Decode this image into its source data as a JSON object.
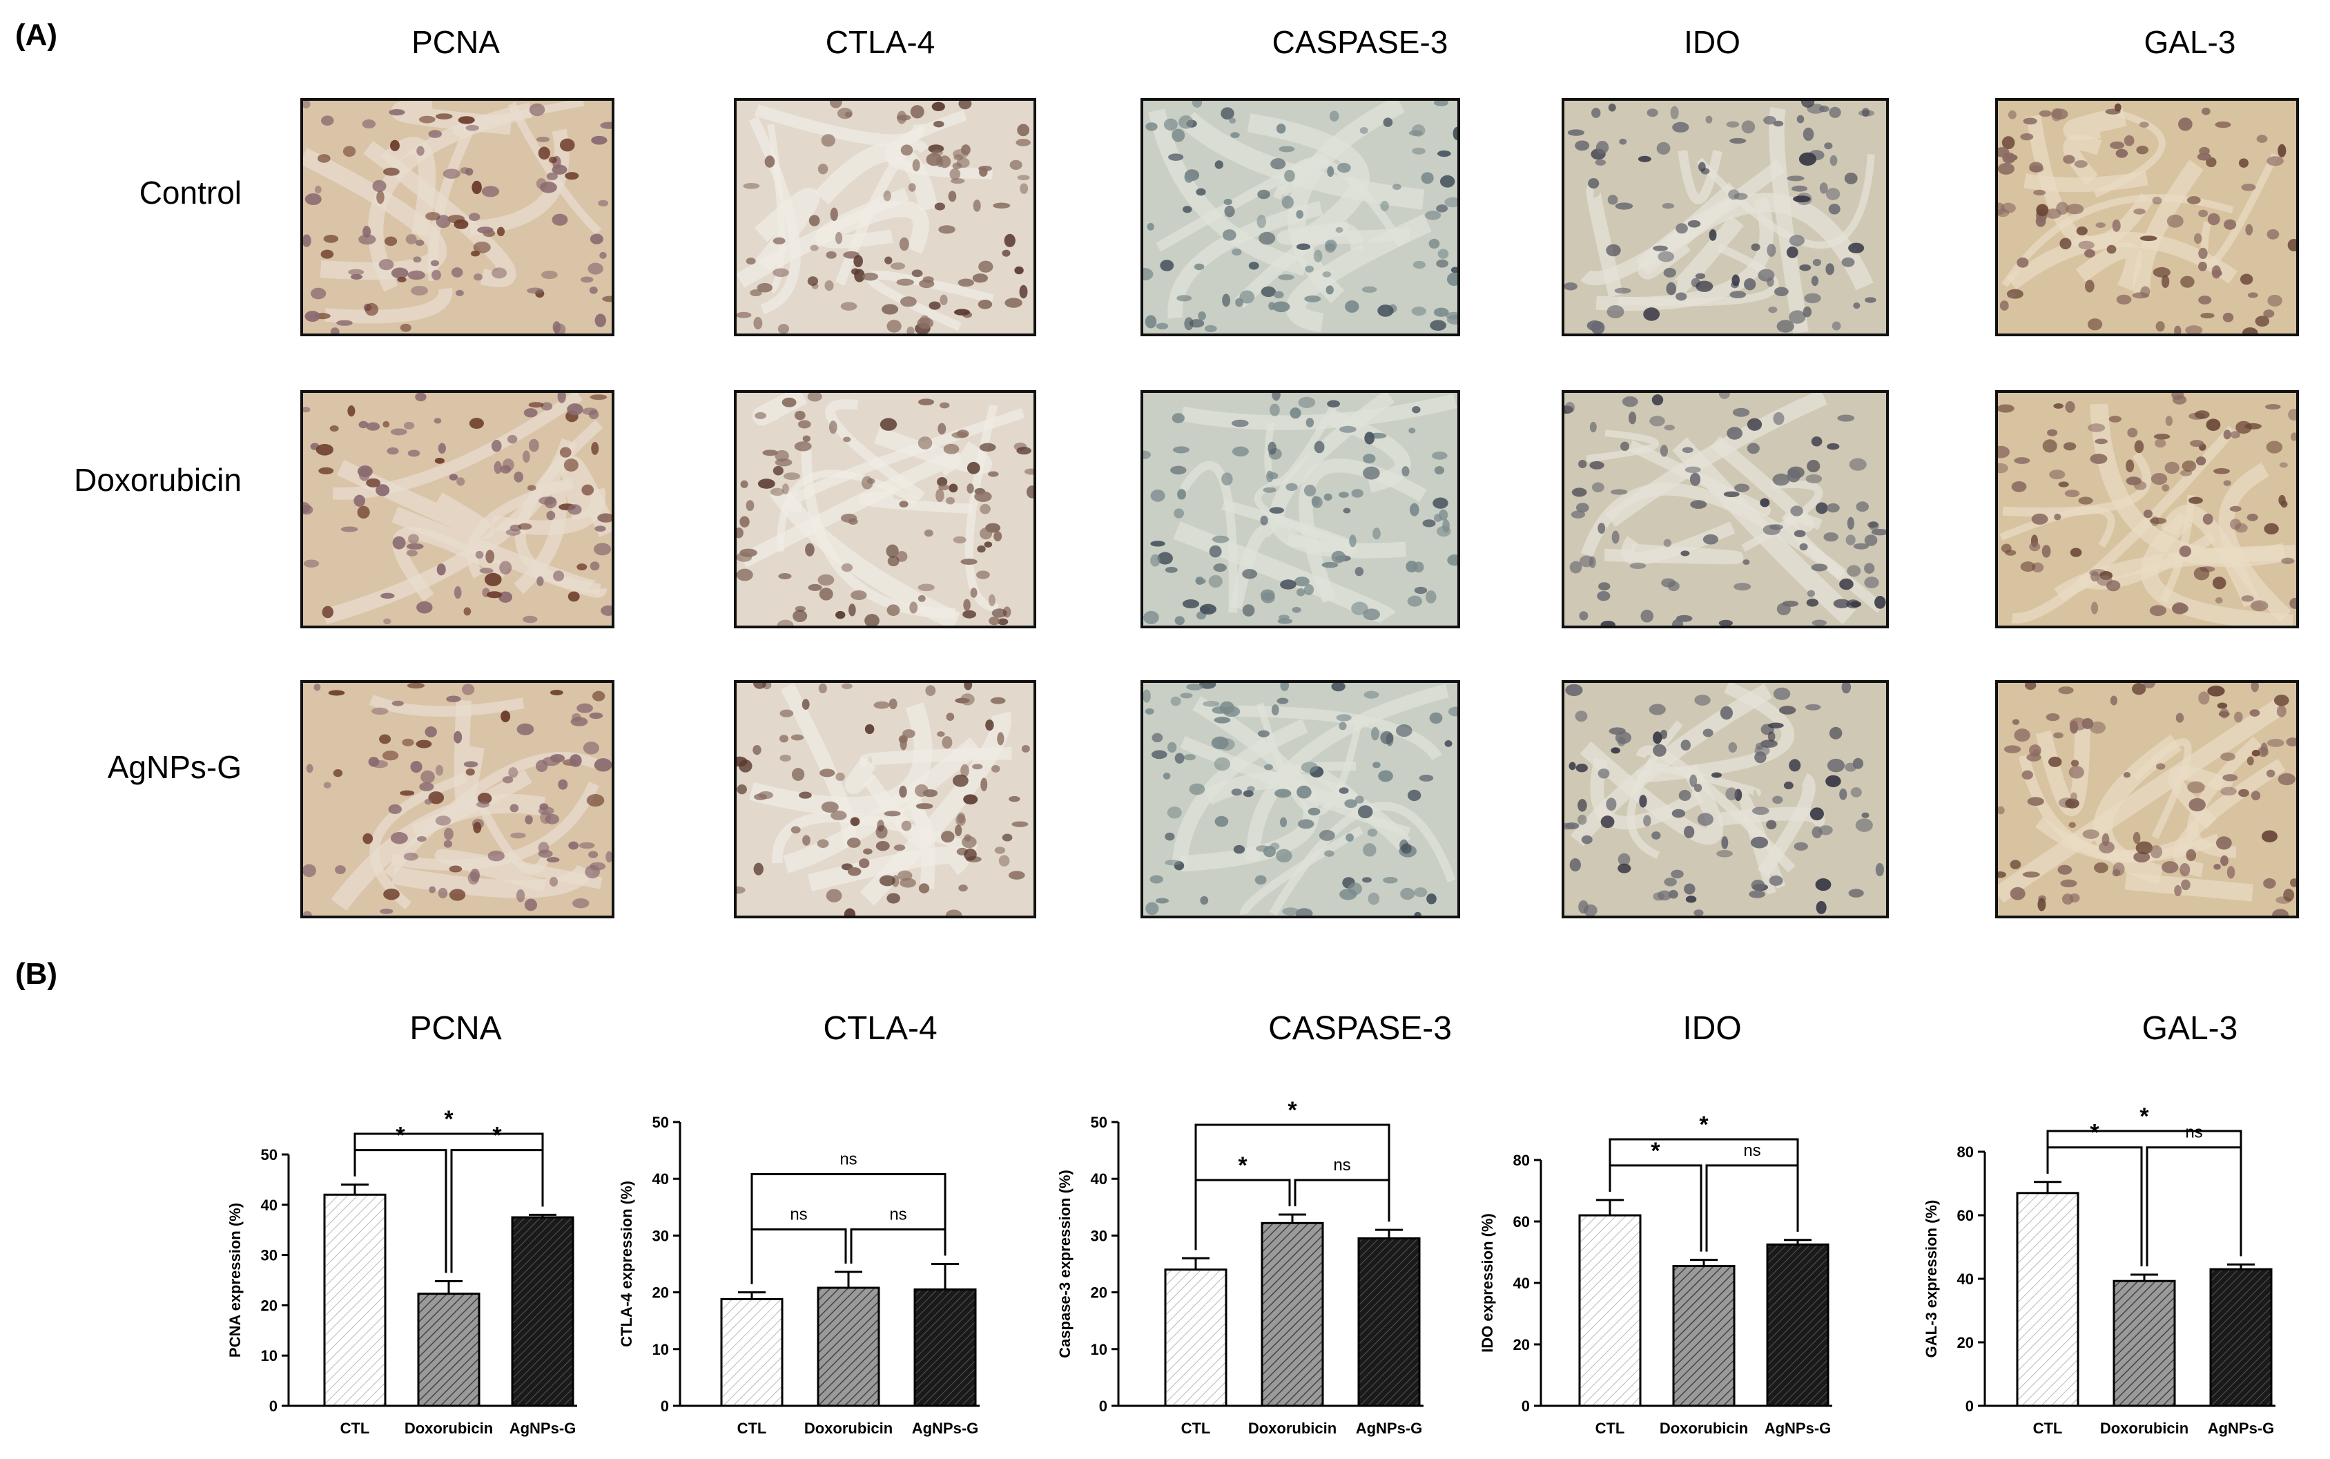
{
  "panel_a": {
    "letter": "(A)",
    "columns": [
      "PCNA",
      "CTLA-4",
      "CASPASE-3",
      "IDO",
      "GAL-3"
    ],
    "rows": [
      "Control",
      "Doxorubicin",
      "AgNPs-G"
    ],
    "palettes": [
      {
        "bg": "#d9c4a8",
        "cell": "#8a6a70",
        "dark": "#6b3a2a",
        "stroma": "#e8ddd0"
      },
      {
        "bg": "#e2d9cc",
        "cell": "#8a6e62",
        "dark": "#5a3a30",
        "stroma": "#f1ede6"
      },
      {
        "bg": "#c9cfc4",
        "cell": "#7a8a8c",
        "dark": "#4a5560",
        "stroma": "#dfe2da"
      },
      {
        "bg": "#cfc8b4",
        "cell": "#6a6a72",
        "dark": "#3a3a48",
        "stroma": "#e6e3d8"
      },
      {
        "bg": "#d8c3a0",
        "cell": "#8a6a62",
        "dark": "#6a4638",
        "stroma": "#e9dcc4"
      }
    ]
  },
  "panel_b": {
    "letter": "(B)",
    "chart_data": [
      {
        "type": "bar",
        "title": "PCNA",
        "ylabel": "PCNA expression (%)",
        "categories": [
          "CTL",
          "Doxorubicin",
          "AgNPs-G"
        ],
        "values": [
          42,
          22.3,
          37.5
        ],
        "errors": [
          2,
          2.5,
          0.5
        ],
        "ylim": [
          0,
          50
        ],
        "yticks": [
          0,
          10,
          20,
          30,
          40,
          50
        ],
        "comparisons": [
          {
            "a": 0,
            "b": 1,
            "label": "*"
          },
          {
            "a": 1,
            "b": 2,
            "label": "*"
          },
          {
            "a": 0,
            "b": 2,
            "label": "*"
          }
        ]
      },
      {
        "type": "bar",
        "title": "CTLA-4",
        "ylabel": "CTLA-4 expression (%)",
        "categories": [
          "CTL",
          "Doxorubicin",
          "AgNPs-G"
        ],
        "values": [
          18.8,
          20.8,
          20.5
        ],
        "errors": [
          1.2,
          2.8,
          4.5
        ],
        "ylim": [
          0,
          50
        ],
        "yticks": [
          0,
          10,
          20,
          30,
          40,
          50
        ],
        "comparisons": [
          {
            "a": 0,
            "b": 1,
            "label": "ns"
          },
          {
            "a": 1,
            "b": 2,
            "label": "ns"
          },
          {
            "a": 0,
            "b": 2,
            "label": "ns"
          }
        ]
      },
      {
        "type": "bar",
        "title": "CASPASE-3",
        "ylabel": "Caspase-3 expression (%)",
        "categories": [
          "CTL",
          "Doxorubicin",
          "AgNPs-G"
        ],
        "values": [
          24,
          32.2,
          29.5
        ],
        "errors": [
          2,
          1.5,
          1.5
        ],
        "ylim": [
          0,
          50
        ],
        "yticks": [
          0,
          10,
          20,
          30,
          40,
          50
        ],
        "comparisons": [
          {
            "a": 0,
            "b": 1,
            "label": "*"
          },
          {
            "a": 1,
            "b": 2,
            "label": "ns"
          },
          {
            "a": 0,
            "b": 2,
            "label": "*"
          }
        ]
      },
      {
        "type": "bar",
        "title": "IDO",
        "ylabel": "IDO expression (%)",
        "categories": [
          "CTL",
          "Doxorubicin",
          "AgNPs-G"
        ],
        "values": [
          62,
          45.5,
          52.5
        ],
        "errors": [
          5,
          2,
          1.5
        ],
        "ylim": [
          0,
          80
        ],
        "yticks": [
          0,
          20,
          40,
          60,
          80
        ],
        "comparisons": [
          {
            "a": 0,
            "b": 1,
            "label": "*"
          },
          {
            "a": 1,
            "b": 2,
            "label": "ns"
          },
          {
            "a": 0,
            "b": 2,
            "label": "*"
          }
        ]
      },
      {
        "type": "bar",
        "title": "GAL-3",
        "ylabel": "GAL-3 expression (%)",
        "categories": [
          "CTL",
          "Doxorubicin",
          "AgNPs-G"
        ],
        "values": [
          67,
          39.3,
          43
        ],
        "errors": [
          3.5,
          2,
          1.5
        ],
        "ylim": [
          0,
          80
        ],
        "yticks": [
          0,
          20,
          40,
          60,
          80
        ],
        "comparisons": [
          {
            "a": 0,
            "b": 1,
            "label": "*"
          },
          {
            "a": 1,
            "b": 2,
            "label": "ns"
          },
          {
            "a": 0,
            "b": 2,
            "label": "*"
          }
        ]
      }
    ]
  }
}
